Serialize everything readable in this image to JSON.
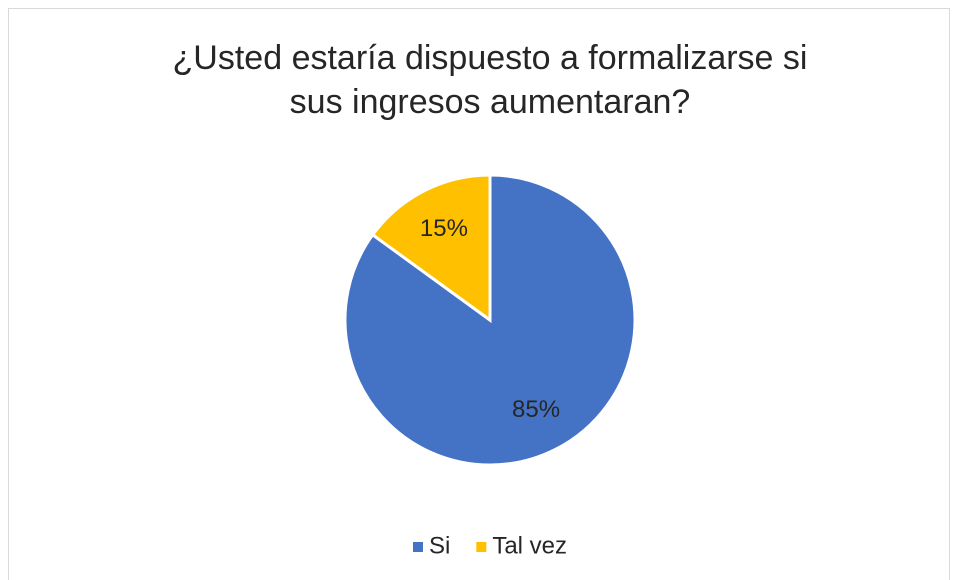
{
  "chart_data": {
    "type": "pie",
    "title": [
      "¿Usted estaría dispuesto a formalizarse si",
      "sus ingresos aumentaran?"
    ],
    "categories": [
      "Si",
      "Tal vez"
    ],
    "values": [
      85,
      15
    ],
    "value_labels": [
      "85%",
      "15%"
    ],
    "colors": [
      "#4472c4",
      "#ffc000"
    ],
    "legend": "bottom"
  }
}
